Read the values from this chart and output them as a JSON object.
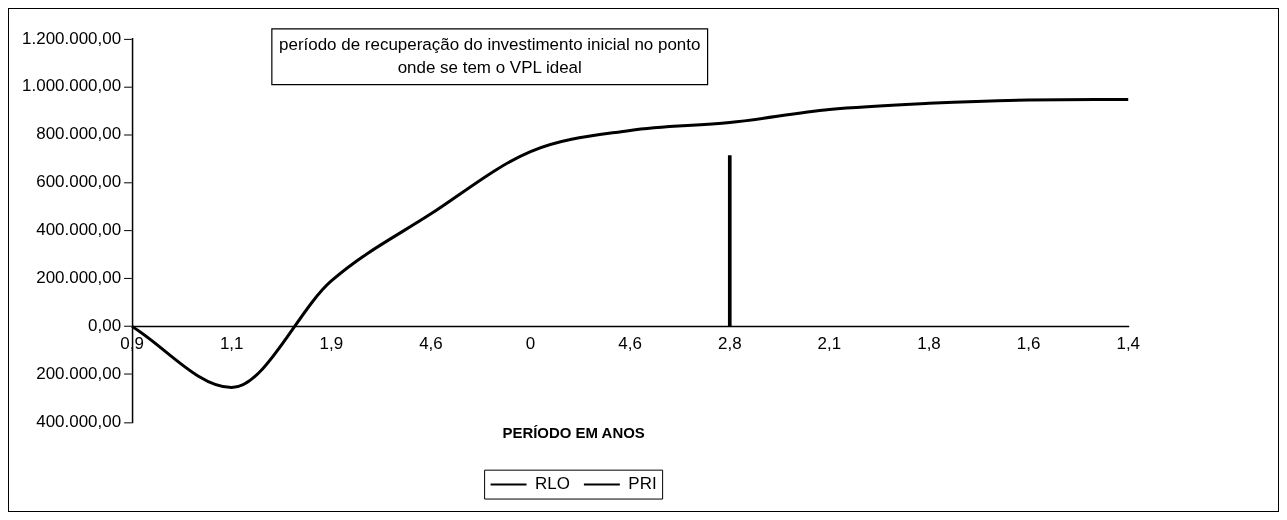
{
  "chart_data": {
    "type": "line",
    "xlabel": "PERÍODO EM ANOS",
    "categories": [
      "0,9",
      "1,1",
      "1,9",
      "4,6",
      "0",
      "4,6",
      "2,8",
      "2,1",
      "1,8",
      "1,6",
      "1,4"
    ],
    "series": [
      {
        "name": "RLO",
        "color": "#000000",
        "values": [
          0,
          -255000,
          190000,
          470000,
          730000,
          818000,
          851000,
          905000,
          931000,
          945000,
          947000
        ]
      },
      {
        "name": "PRI",
        "type": "bar",
        "color": "#000000",
        "values": [
          null,
          null,
          null,
          null,
          null,
          null,
          713000,
          null,
          null,
          null,
          null
        ]
      }
    ],
    "ylim": [
      -400000,
      1200000
    ],
    "yticks": [
      {
        "value": -400000,
        "label": "400.000,00"
      },
      {
        "value": -200000,
        "label": "200.000,00"
      },
      {
        "value": 0,
        "label": "0,00"
      },
      {
        "value": 200000,
        "label": "200.000,00"
      },
      {
        "value": 400000,
        "label": "400.000,00"
      },
      {
        "value": 600000,
        "label": "600.000,00"
      },
      {
        "value": 800000,
        "label": "800.000,00"
      },
      {
        "value": 1000000,
        "label": "1.000.000,00"
      },
      {
        "value": 1200000,
        "label": "1.200.000,00"
      }
    ],
    "grid": false,
    "legend": "bottom",
    "marker": "none",
    "line_style": "solid",
    "annotations": [
      "período de recuperação do investimento inicial no ponto onde se tem o VPL ideal"
    ]
  }
}
